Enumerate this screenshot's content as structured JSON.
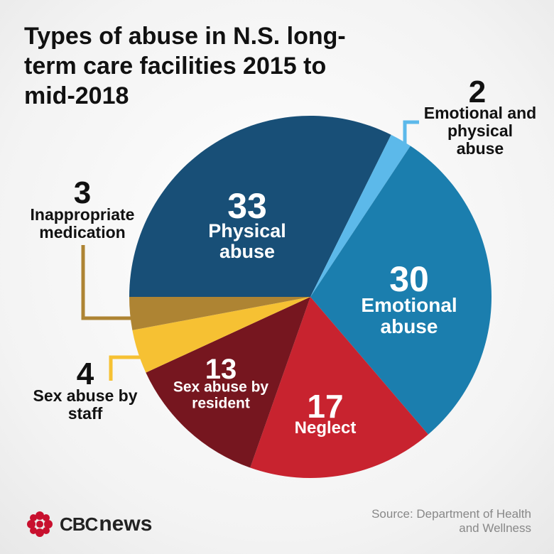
{
  "chart_data": {
    "type": "pie",
    "title": "Types of abuse in N.S. long-term care facilities 2015 to mid-2018",
    "categories": [
      "Physical abuse",
      "Emotional and physical abuse",
      "Emotional abuse",
      "Neglect",
      "Sex abuse by resident",
      "Sex abuse by staff",
      "Inappropriate medication"
    ],
    "values": [
      33,
      2,
      30,
      17,
      13,
      4,
      3
    ],
    "colors": [
      "#184f77",
      "#5cb9ea",
      "#1b7eae",
      "#c8232f",
      "#76161f",
      "#f6c133",
      "#ae8433"
    ],
    "source": "Source: Department of Health and Wellness"
  },
  "logo": {
    "cbc": "CBC",
    "news": "news"
  }
}
